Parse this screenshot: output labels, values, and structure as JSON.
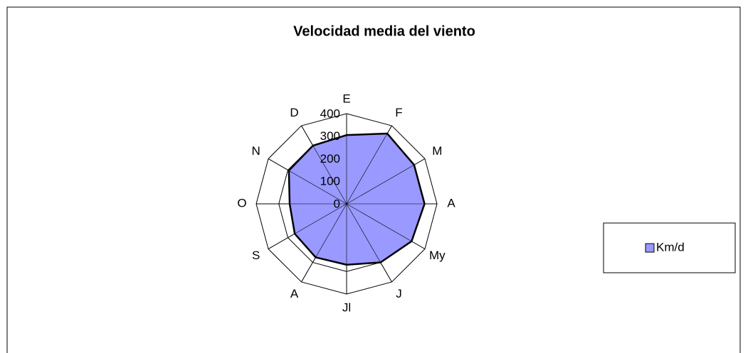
{
  "chart_data": {
    "type": "radar",
    "title": "Velocidad media del viento",
    "categories": [
      "E",
      "F",
      "M",
      "A",
      "My",
      "J",
      "Jl",
      "A",
      "S",
      "O",
      "N",
      "D"
    ],
    "series": [
      {
        "name": "Km/d",
        "color": "#9999ff",
        "values": [
          305,
          360,
          345,
          345,
          332,
          300,
          270,
          274,
          265,
          252,
          295,
          298
        ]
      }
    ],
    "ylim": [
      0,
      400
    ],
    "yticks": [
      0,
      100,
      200,
      300,
      400
    ],
    "legend": "right"
  }
}
